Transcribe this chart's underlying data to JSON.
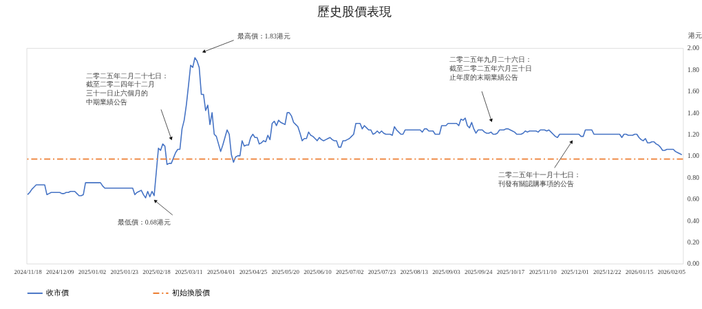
{
  "chart_data": {
    "type": "line",
    "title": "歷史股價表現",
    "ylabel": "港元",
    "categories": [
      "2024/11/18",
      null,
      null,
      null,
      null,
      null,
      null,
      null,
      null,
      null,
      null,
      null,
      null,
      null,
      null,
      "2024/12/09",
      null,
      null,
      null,
      null,
      null,
      null,
      null,
      null,
      null,
      null,
      null,
      null,
      null,
      null,
      "2025/01/02",
      null,
      null,
      null,
      null,
      null,
      null,
      null,
      null,
      null,
      null,
      null,
      null,
      null,
      null,
      "2025/01/23",
      null,
      null,
      null,
      null,
      null,
      null,
      null,
      null,
      null,
      null,
      null,
      null,
      null,
      null,
      "2025/02/18",
      null,
      null,
      null,
      null,
      null,
      null,
      null,
      null,
      null,
      null,
      null,
      null,
      null,
      null,
      "2025/03/11",
      null,
      null,
      null,
      null,
      null,
      null,
      null,
      null,
      null,
      null,
      null,
      null,
      null,
      null,
      "2025/04/01",
      null,
      null,
      null,
      null,
      null,
      null,
      null,
      null,
      null,
      null,
      null,
      null,
      null,
      null,
      "2025/04/25",
      null,
      null,
      null,
      null,
      null,
      null,
      null,
      null,
      null,
      null,
      null,
      null,
      null,
      null,
      "2025/05/20",
      null,
      null,
      null,
      null,
      null,
      null,
      null,
      null,
      null,
      null,
      null,
      null,
      null,
      null,
      "2025/06/10",
      null,
      null,
      null,
      null,
      null,
      null,
      null,
      null,
      null,
      null,
      null,
      null,
      null,
      null,
      "2025/07/02",
      null,
      null,
      null,
      null,
      null,
      null,
      null,
      null,
      null,
      null,
      null,
      null,
      null,
      null,
      "2025/07/23",
      null,
      null,
      null,
      null,
      null,
      null,
      null,
      null,
      null,
      null,
      null,
      null,
      null,
      null,
      "2025/08/13",
      null,
      null,
      null,
      null,
      null,
      null,
      null,
      null,
      null,
      null,
      null,
      null,
      null,
      null,
      "2025/09/03",
      null,
      null,
      null,
      null,
      null,
      null,
      null,
      null,
      null,
      null,
      null,
      null,
      null,
      null,
      "2025/09/24",
      null,
      null,
      null,
      null,
      null,
      null,
      null,
      null,
      null,
      null,
      null,
      null,
      null,
      null,
      "2025/10/17",
      null,
      null,
      null,
      null,
      null,
      null,
      null,
      null,
      null,
      null,
      null,
      null,
      null,
      null,
      "2025/11/10",
      null,
      null,
      null,
      null,
      null,
      null,
      null,
      null,
      null,
      null,
      null,
      null,
      null,
      null,
      "2025/12/01",
      null,
      null,
      null,
      null,
      null,
      null,
      null,
      null,
      null,
      null,
      null,
      null,
      null,
      null,
      "2025/12/22",
      null,
      null,
      null,
      null,
      null,
      null,
      null,
      null,
      null,
      null,
      null,
      null,
      null,
      null,
      "2026/01/15",
      null,
      null,
      null,
      null,
      null,
      null,
      null,
      null,
      null,
      null,
      null,
      null,
      null,
      null,
      "2026/02/05",
      null,
      null,
      null,
      null,
      null
    ],
    "series": [
      {
        "name": "收市價",
        "color": "#4472c4",
        "line_style": "solid",
        "values": [
          0.64,
          0.66,
          0.69,
          0.71,
          0.73,
          0.73,
          0.73,
          0.73,
          0.73,
          0.64,
          0.65,
          0.66,
          0.66,
          0.66,
          0.66,
          0.66,
          0.65,
          0.65,
          0.66,
          0.66,
          0.67,
          0.67,
          0.67,
          0.65,
          0.63,
          0.63,
          0.64,
          0.75,
          0.75,
          0.75,
          0.75,
          0.75,
          0.75,
          0.75,
          0.75,
          0.72,
          0.7,
          0.7,
          0.7,
          0.7,
          0.7,
          0.7,
          0.7,
          0.7,
          0.7,
          0.7,
          0.7,
          0.7,
          0.7,
          0.7,
          0.64,
          0.66,
          0.67,
          0.68,
          0.64,
          0.61,
          0.67,
          0.62,
          0.67,
          0.63,
          0.85,
          1.07,
          1.05,
          1.11,
          1.09,
          0.92,
          0.93,
          0.93,
          0.98,
          1.03,
          1.06,
          1.06,
          1.25,
          1.33,
          1.47,
          1.65,
          1.84,
          1.82,
          1.91,
          1.88,
          1.82,
          1.57,
          1.57,
          1.42,
          1.47,
          1.29,
          1.4,
          1.2,
          1.18,
          1.11,
          1.04,
          1.1,
          1.17,
          1.24,
          1.2,
          1.01,
          0.94,
          0.99,
          1.0,
          1.0,
          1.14,
          1.09,
          1.1,
          1.1,
          1.17,
          1.2,
          1.17,
          1.17,
          1.11,
          1.12,
          1.14,
          1.13,
          1.19,
          1.15,
          1.3,
          1.32,
          1.28,
          1.33,
          1.31,
          1.3,
          1.29,
          1.4,
          1.4,
          1.37,
          1.31,
          1.29,
          1.27,
          1.21,
          1.14,
          1.16,
          1.16,
          1.22,
          1.19,
          1.18,
          1.16,
          1.14,
          1.17,
          1.15,
          1.14,
          1.15,
          1.16,
          1.17,
          1.15,
          1.14,
          1.14,
          1.08,
          1.08,
          1.14,
          1.14,
          1.15,
          1.16,
          1.18,
          1.2,
          1.3,
          1.3,
          1.3,
          1.25,
          1.28,
          1.26,
          1.24,
          1.24,
          1.2,
          1.21,
          1.23,
          1.21,
          1.23,
          1.21,
          1.2,
          1.2,
          1.2,
          1.19,
          1.27,
          1.24,
          1.22,
          1.2,
          1.2,
          1.24,
          1.24,
          1.24,
          1.24,
          1.24,
          1.24,
          1.24,
          1.24,
          1.22,
          1.25,
          1.25,
          1.23,
          1.23,
          1.23,
          1.2,
          1.2,
          1.2,
          1.28,
          1.28,
          1.28,
          1.3,
          1.3,
          1.3,
          1.3,
          1.3,
          1.28,
          1.34,
          1.33,
          1.35,
          1.28,
          1.26,
          1.31,
          1.25,
          1.21,
          1.24,
          1.24,
          1.24,
          1.22,
          1.21,
          1.21,
          1.22,
          1.2,
          1.2,
          1.21,
          1.24,
          1.24,
          1.24,
          1.25,
          1.25,
          1.24,
          1.23,
          1.22,
          1.2,
          1.2,
          1.2,
          1.21,
          1.23,
          1.22,
          1.23,
          1.23,
          1.23,
          1.23,
          1.22,
          1.24,
          1.24,
          1.24,
          1.23,
          1.24,
          1.22,
          1.2,
          1.18,
          1.17,
          1.2,
          1.2,
          1.2,
          1.2,
          1.2,
          1.2,
          1.2,
          1.2,
          1.2,
          1.2,
          1.18,
          1.18,
          1.24,
          1.24,
          1.24,
          1.24,
          1.2,
          1.2,
          1.2,
          1.2,
          1.2,
          1.2,
          1.2,
          1.2,
          1.2,
          1.2,
          1.2,
          1.2,
          1.2,
          1.17,
          1.2,
          1.2,
          1.19,
          1.19,
          1.19,
          1.2,
          1.2,
          1.17,
          1.15,
          1.14,
          1.16,
          1.12,
          1.12,
          1.13,
          1.13,
          1.11,
          1.1,
          1.08,
          1.05,
          1.05,
          1.06,
          1.06,
          1.06,
          1.06,
          1.04,
          1.03,
          1.02,
          1.01
        ]
      }
    ],
    "ref_lines": [
      {
        "axis": "y",
        "value": 0.97,
        "label": "初始換股價",
        "color": "#ed7d31",
        "line_style": "dashed"
      }
    ],
    "ylim": [
      0,
      2
    ],
    "yticks": [
      {
        "value": 0,
        "label": "0.00"
      },
      {
        "value": 0.2,
        "label": "0.20"
      },
      {
        "value": 0.4,
        "label": "0.40"
      },
      {
        "value": 0.6,
        "label": "0.60"
      },
      {
        "value": 0.8,
        "label": "0.80"
      },
      {
        "value": 1,
        "label": "1.00"
      },
      {
        "value": 1.2,
        "label": "1.20"
      },
      {
        "value": 1.4,
        "label": "1.40"
      },
      {
        "value": 1.6,
        "label": "1.60"
      },
      {
        "value": 1.8,
        "label": "1.80"
      },
      {
        "value": 2,
        "label": "2.00"
      }
    ],
    "legend": "bottom",
    "annotations": [
      "最高價：1.83港元",
      "二零二五年二月二十七日：截至二零二四年十二月三十一日止六個月的中期業績公告",
      "最低價：0.68港元",
      "二零二五年九月二十六日：截至二零二五年六月三十日止年度的末期業績公告",
      "二零二五年十一月十七日：刊發有關認購事項的公告"
    ]
  }
}
